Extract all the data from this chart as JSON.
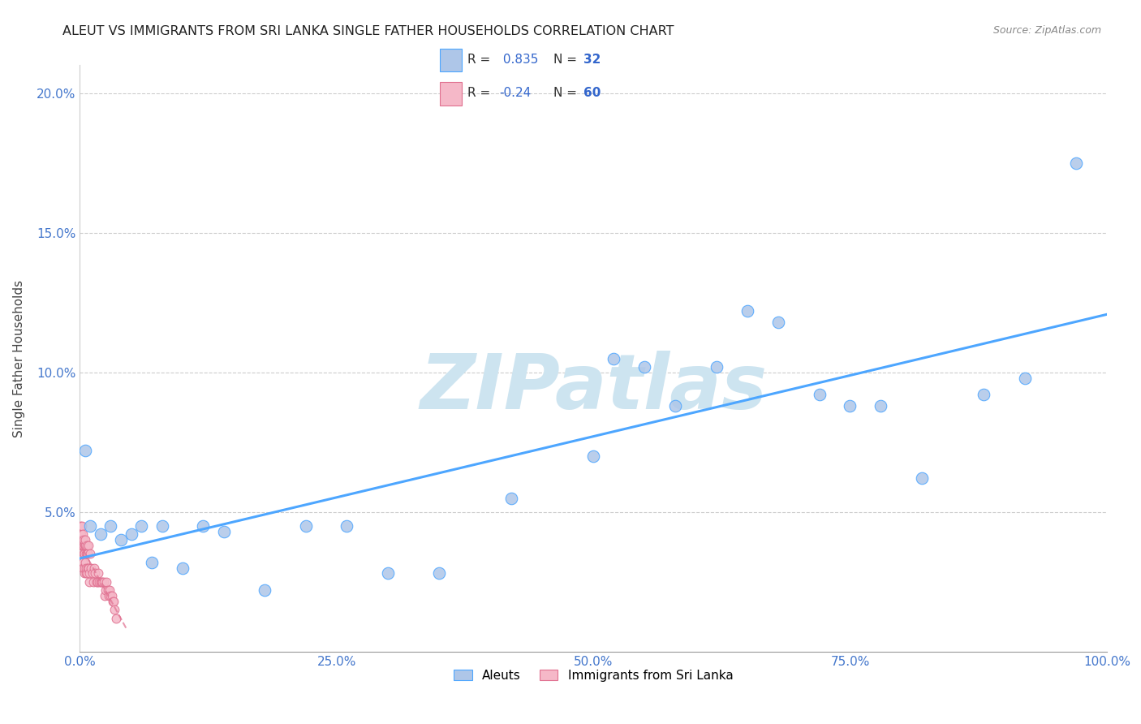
{
  "title": "ALEUT VS IMMIGRANTS FROM SRI LANKA SINGLE FATHER HOUSEHOLDS CORRELATION CHART",
  "source": "Source: ZipAtlas.com",
  "ylabel": "Single Father Households",
  "background_color": "#ffffff",
  "plot_bg_color": "#ffffff",
  "grid_color": "#cccccc",
  "aleut_color": "#aec6e8",
  "aleut_line_color": "#4da6ff",
  "srilanka_color": "#f5b8c8",
  "srilanka_line_color": "#e07090",
  "aleut_R": 0.835,
  "aleut_N": 32,
  "srilanka_R": -0.24,
  "srilanka_N": 60,
  "aleut_x": [
    0.5,
    1.0,
    2.0,
    3.0,
    4.0,
    5.0,
    6.0,
    7.0,
    8.0,
    10.0,
    12.0,
    14.0,
    18.0,
    22.0,
    26.0,
    30.0,
    35.0,
    42.0,
    50.0,
    52.0,
    55.0,
    58.0,
    62.0,
    65.0,
    68.0,
    72.0,
    75.0,
    78.0,
    82.0,
    88.0,
    92.0,
    97.0
  ],
  "aleut_y": [
    7.2,
    4.5,
    4.2,
    4.5,
    4.0,
    4.2,
    4.5,
    3.2,
    4.5,
    3.0,
    4.5,
    4.3,
    2.2,
    4.5,
    4.5,
    2.8,
    2.8,
    5.5,
    7.0,
    10.5,
    10.2,
    8.8,
    10.2,
    12.2,
    11.8,
    9.2,
    8.8,
    8.8,
    6.2,
    9.2,
    9.8,
    17.5
  ],
  "srilanka_x": [
    0.05,
    0.08,
    0.1,
    0.12,
    0.15,
    0.18,
    0.2,
    0.22,
    0.25,
    0.28,
    0.3,
    0.32,
    0.35,
    0.38,
    0.4,
    0.42,
    0.45,
    0.48,
    0.5,
    0.52,
    0.55,
    0.58,
    0.6,
    0.62,
    0.65,
    0.68,
    0.7,
    0.72,
    0.75,
    0.78,
    0.8,
    0.85,
    0.9,
    0.95,
    1.0,
    1.1,
    1.2,
    1.3,
    1.4,
    1.5,
    1.6,
    1.7,
    1.8,
    1.9,
    2.0,
    2.1,
    2.2,
    2.3,
    2.4,
    2.5,
    2.6,
    2.7,
    2.8,
    2.9,
    3.0,
    3.1,
    3.2,
    3.3,
    3.4,
    3.5
  ],
  "srilanka_y": [
    4.2,
    4.5,
    4.0,
    3.8,
    4.2,
    3.8,
    4.5,
    4.0,
    3.2,
    3.8,
    4.2,
    3.0,
    3.5,
    3.8,
    4.0,
    2.8,
    3.5,
    3.0,
    3.8,
    4.0,
    3.2,
    2.8,
    3.5,
    3.0,
    3.8,
    3.5,
    2.8,
    3.5,
    3.0,
    3.5,
    3.8,
    3.0,
    2.5,
    2.8,
    3.5,
    3.0,
    2.8,
    2.5,
    3.0,
    2.8,
    2.5,
    2.5,
    2.8,
    2.5,
    2.5,
    2.5,
    2.5,
    2.5,
    2.0,
    2.2,
    2.5,
    2.2,
    2.0,
    2.2,
    2.0,
    2.0,
    1.8,
    1.8,
    1.5,
    1.2
  ],
  "xlim": [
    0,
    100
  ],
  "ylim": [
    0,
    21
  ],
  "yticks": [
    5.0,
    10.0,
    15.0,
    20.0
  ],
  "xticks": [
    0,
    25,
    50,
    75,
    100
  ],
  "xtick_labels": [
    "0.0%",
    "25.0%",
    "50.0%",
    "75.0%",
    "100.0%"
  ],
  "ytick_labels": [
    "5.0%",
    "10.0%",
    "15.0%",
    "20.0%"
  ],
  "watermark": "ZIPatlas",
  "watermark_color": "#cde4f0"
}
